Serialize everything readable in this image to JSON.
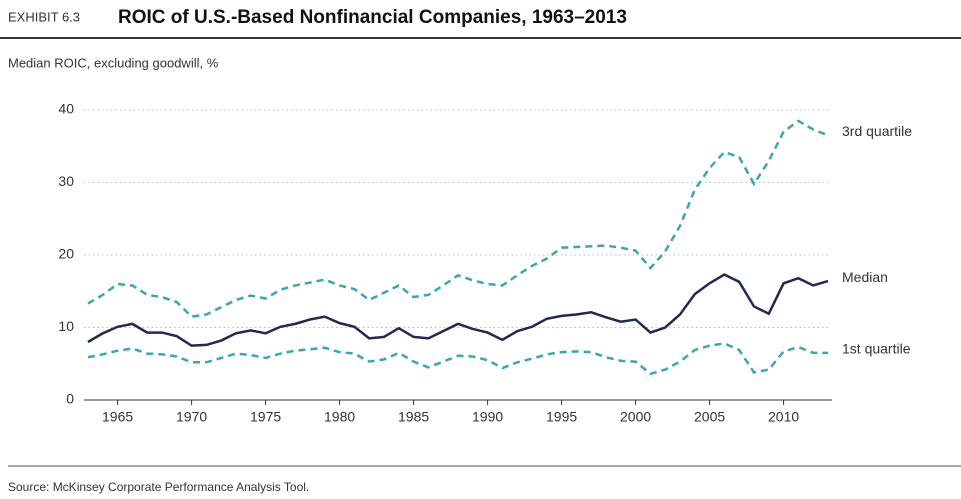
{
  "chart_data": {
    "type": "line",
    "exhibit": "EXHIBIT 6.3",
    "title": "ROIC of U.S.-Based Nonfinancial Companies, 1963–2013",
    "y_label": "Median ROIC, excluding goodwill, %",
    "source": "Source: McKinsey Corporate Performance Analysis Tool.",
    "x": [
      1963,
      1964,
      1965,
      1966,
      1967,
      1968,
      1969,
      1970,
      1971,
      1972,
      1973,
      1974,
      1975,
      1976,
      1977,
      1978,
      1979,
      1980,
      1981,
      1982,
      1983,
      1984,
      1985,
      1986,
      1987,
      1988,
      1989,
      1990,
      1991,
      1992,
      1993,
      1994,
      1995,
      1996,
      1997,
      1998,
      1999,
      2000,
      2001,
      2002,
      2003,
      2004,
      2005,
      2006,
      2007,
      2008,
      2009,
      2010,
      2011,
      2012,
      2013
    ],
    "xlim": [
      1963,
      2013
    ],
    "xticks": [
      1965,
      1970,
      1975,
      1980,
      1985,
      1990,
      1995,
      2000,
      2005,
      2010
    ],
    "ylim": [
      0,
      40
    ],
    "yticks": [
      0,
      10,
      20,
      30,
      40
    ],
    "grid": true,
    "series": [
      {
        "name": "3rd quartile",
        "color": "#3aa6ae",
        "dashed": true,
        "values": [
          13.3,
          14.5,
          16,
          15.8,
          14.5,
          14.2,
          13.5,
          11.5,
          11.8,
          12.8,
          13.8,
          14.4,
          14,
          15.2,
          15.8,
          16.2,
          16.6,
          15.8,
          15.3,
          13.8,
          14.8,
          15.8,
          14.2,
          14.5,
          15.8,
          17.2,
          16.5,
          16,
          15.8,
          17.2,
          18.5,
          19.5,
          21,
          21.1,
          21.2,
          21.3,
          21,
          20.6,
          18.2,
          20.5,
          24,
          29,
          32,
          34.2,
          33.5,
          29.8,
          33,
          37,
          38.5,
          37.3,
          36.5
        ]
      },
      {
        "name": "Median",
        "color": "#1f2a4e",
        "dashed": false,
        "values": [
          8,
          9.2,
          10.1,
          10.5,
          9.3,
          9.3,
          8.8,
          7.5,
          7.6,
          8.2,
          9.2,
          9.6,
          9.2,
          10.1,
          10.5,
          11.1,
          11.5,
          10.6,
          10.1,
          8.5,
          8.7,
          9.9,
          8.7,
          8.5,
          9.5,
          10.5,
          9.8,
          9.3,
          8.3,
          9.5,
          10.1,
          11.2,
          11.6,
          11.8,
          12.1,
          11.4,
          10.8,
          11.1,
          9.3,
          10,
          11.8,
          14.6,
          16.1,
          17.3,
          16.3,
          12.9,
          11.9,
          16.1,
          16.8,
          15.8,
          16.4
        ]
      },
      {
        "name": "1st quartile",
        "color": "#3aa6ae",
        "dashed": true,
        "values": [
          5.9,
          6.3,
          6.8,
          7.1,
          6.4,
          6.3,
          6,
          5.2,
          5.2,
          5.8,
          6.4,
          6.2,
          5.8,
          6.4,
          6.8,
          7,
          7.2,
          6.6,
          6.4,
          5.3,
          5.6,
          6.5,
          5.3,
          4.5,
          5.3,
          6.1,
          6,
          5.5,
          4.4,
          5.2,
          5.7,
          6.3,
          6.6,
          6.7,
          6.6,
          5.9,
          5.4,
          5.3,
          3.6,
          4.2,
          5.3,
          6.9,
          7.5,
          7.8,
          6.9,
          3.8,
          4.2,
          6.7,
          7.3,
          6.5,
          6.5
        ]
      }
    ]
  }
}
